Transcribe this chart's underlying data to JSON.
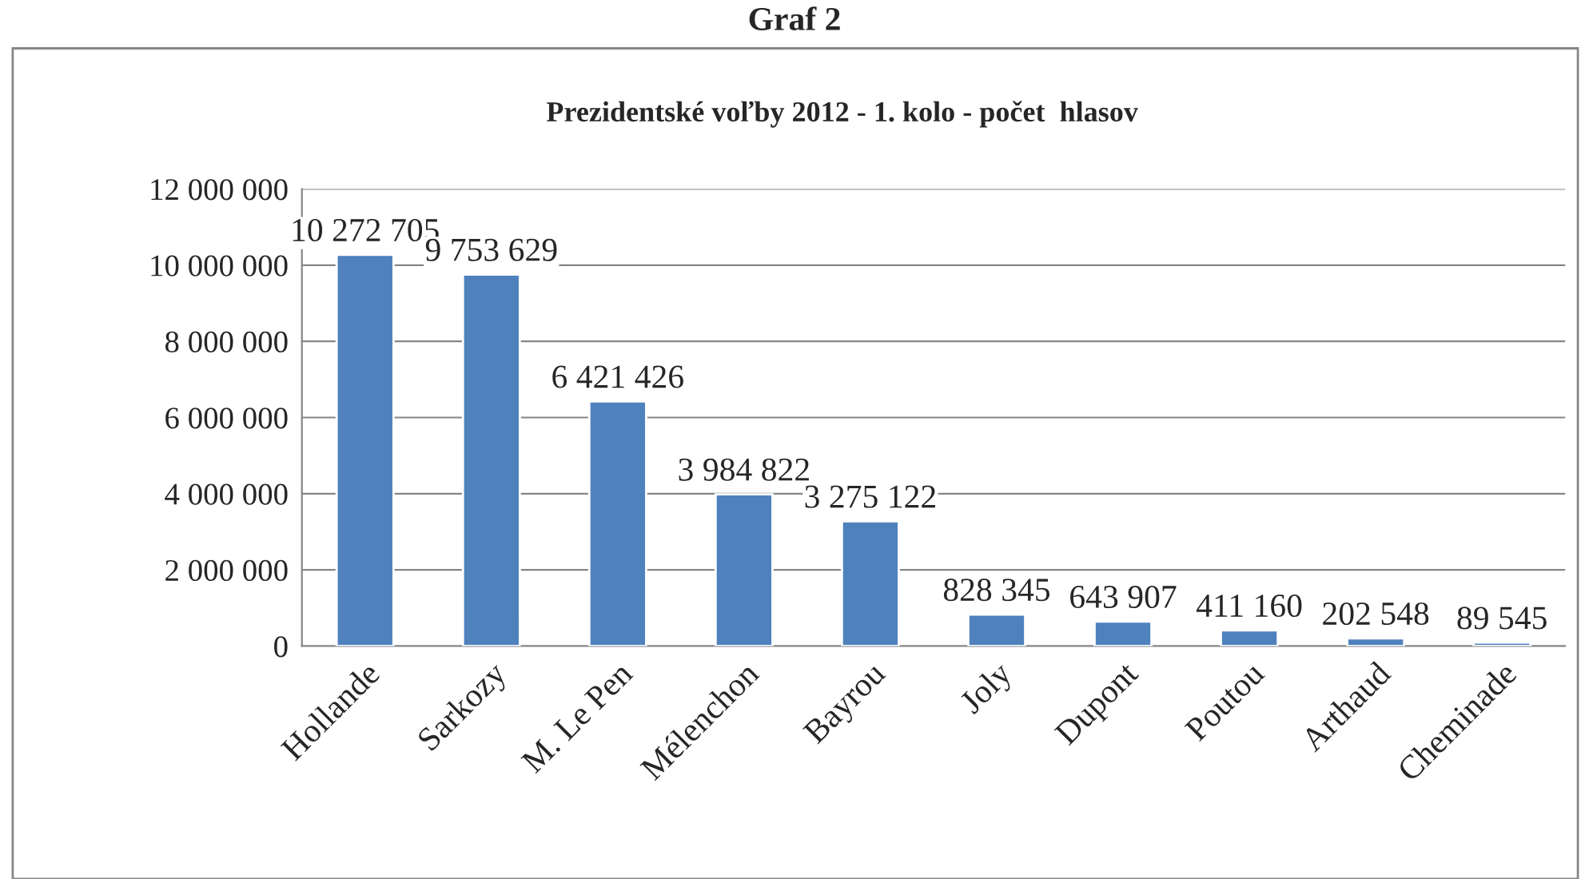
{
  "chart_data": {
    "type": "bar",
    "title": "Prezidentské voľby 2012 - 1. kolo - počet  hlasov",
    "annotations": [
      "Graf 2"
    ],
    "categories": [
      "Hollande",
      "Sarkozy",
      "M. Le Pen",
      "Mélenchon",
      "Bayrou",
      "Joly",
      "Dupont",
      "Poutou",
      "Arthaud",
      "Cheminade"
    ],
    "values": [
      10272705,
      9753629,
      6421426,
      3984822,
      3275122,
      828345,
      643907,
      411160,
      202548,
      89545
    ],
    "value_labels": [
      "10 272 705",
      "9 753 629",
      "6 421 426",
      "3 984 822",
      "3 275 122",
      "828 345",
      "643 907",
      "411 160",
      "202 548",
      "89 545"
    ],
    "color": "#4f81bd",
    "ylim": [
      0,
      12000000
    ],
    "yticks": [
      {
        "value": 0,
        "label": "0"
      },
      {
        "value": 2000000,
        "label": "2 000 000"
      },
      {
        "value": 4000000,
        "label": "4 000 000"
      },
      {
        "value": 6000000,
        "label": "6 000 000"
      },
      {
        "value": 8000000,
        "label": "8 000 000"
      },
      {
        "value": 10000000,
        "label": "10 000 000"
      },
      {
        "value": 12000000,
        "label": "12 000 000"
      }
    ],
    "grid": "y",
    "legend": false
  }
}
